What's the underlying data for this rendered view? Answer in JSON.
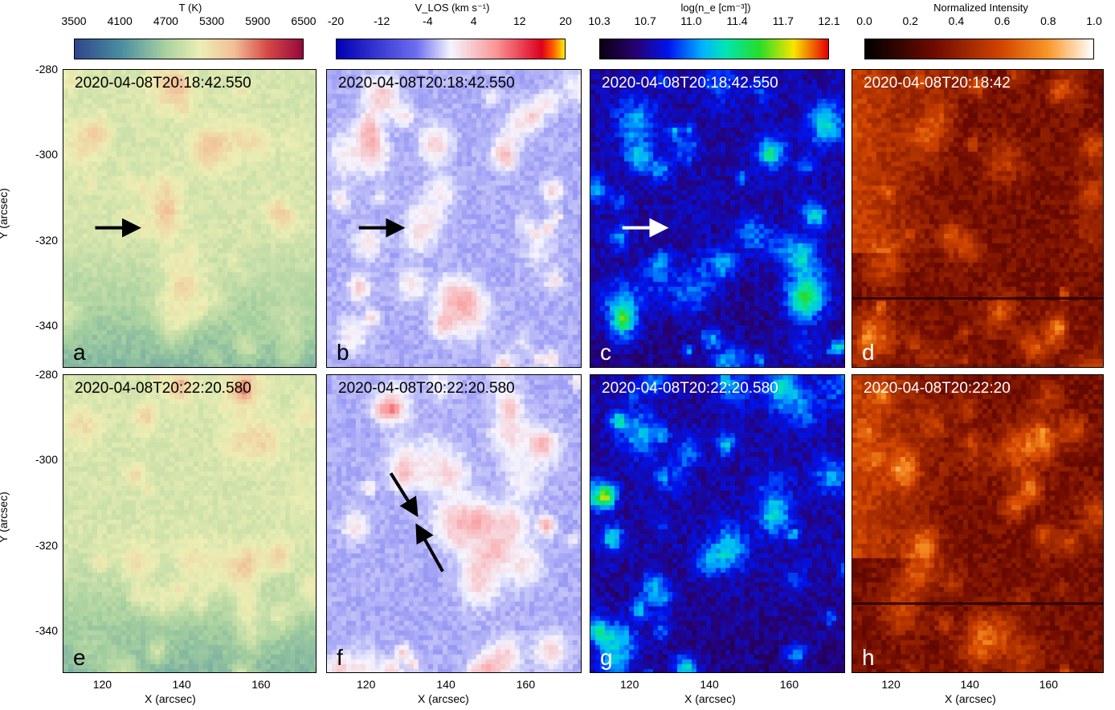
{
  "colorbars": [
    {
      "title": "T (K)",
      "ticks": [
        "3500",
        "4100",
        "4700",
        "5300",
        "5900",
        "6500"
      ],
      "colormap": "temperature"
    },
    {
      "title": "V_LOS (km s⁻¹)",
      "ticks": [
        "-20",
        "-12",
        "-4",
        "4",
        "12",
        "20"
      ],
      "colormap": "velocity"
    },
    {
      "title": "log(n_e [cm⁻³])",
      "ticks": [
        "10.3",
        "10.7",
        "11.0",
        "11.4",
        "11.7",
        "12.1"
      ],
      "colormap": "density"
    },
    {
      "title": "Normalized Intensity",
      "ticks": [
        "0.0",
        "0.2",
        "0.4",
        "0.6",
        "0.8",
        "1.0"
      ],
      "colormap": "intensity"
    }
  ],
  "panels": [
    {
      "label": "a",
      "timestamp": "2020-04-08T20:18:42.550",
      "text_color": "#000000"
    },
    {
      "label": "b",
      "timestamp": "2020-04-08T20:18:42.550",
      "text_color": "#000000"
    },
    {
      "label": "c",
      "timestamp": "2020-04-08T20:18:42.550",
      "text_color": "#ffffff"
    },
    {
      "label": "d",
      "timestamp": "2020-04-08T20:18:42",
      "text_color": "#ffffff"
    },
    {
      "label": "e",
      "timestamp": "2020-04-08T20:22:20.580",
      "text_color": "#000000"
    },
    {
      "label": "f",
      "timestamp": "2020-04-08T20:22:20.580",
      "text_color": "#000000"
    },
    {
      "label": "g",
      "timestamp": "2020-04-08T20:22:20.580",
      "text_color": "#ffffff"
    },
    {
      "label": "h",
      "timestamp": "2020-04-08T20:22:20",
      "text_color": "#ffffff"
    }
  ],
  "axes": {
    "xlabel": "X (arcsec)",
    "ylabel": "Y (arcsec)",
    "xticks": [
      "120",
      "140",
      "160"
    ],
    "yticks": [
      "-280",
      "-300",
      "-320",
      "-340"
    ],
    "xlim": [
      110,
      174
    ],
    "ylim": [
      -350,
      -280
    ]
  },
  "chart_data": {
    "type": "heatmap",
    "title": "",
    "xlabel": "X (arcsec)",
    "ylabel": "Y (arcsec)",
    "xlim": [
      110,
      174
    ],
    "ylim": [
      -350,
      -280
    ],
    "x_ticks": [
      120,
      140,
      160
    ],
    "y_ticks": [
      -280,
      -300,
      -320,
      -340
    ],
    "layout": "2 rows x 4 columns",
    "quantities": [
      "T (K)",
      "V_LOS (km s⁻¹)",
      "log(n_e [cm⁻³])",
      "Normalized Intensity"
    ],
    "ranges": [
      [
        3500,
        6500
      ],
      [
        -20,
        20
      ],
      [
        10.3,
        12.1
      ],
      [
        0.0,
        1.0
      ]
    ],
    "arrows": [
      {
        "panel": "a",
        "x": [
          118,
          128
        ],
        "y": [
          -317,
          -317
        ]
      },
      {
        "panel": "b",
        "x": [
          118,
          128
        ],
        "y": [
          -317,
          -317
        ]
      },
      {
        "panel": "c",
        "x": [
          118,
          128
        ],
        "y": [
          -317,
          -317
        ]
      },
      {
        "panel": "f",
        "x": [
          126,
          132
        ],
        "y": [
          -303,
          -312
        ]
      },
      {
        "panel": "f",
        "x": [
          139,
          133
        ],
        "y": [
          -326,
          -316
        ]
      }
    ]
  }
}
